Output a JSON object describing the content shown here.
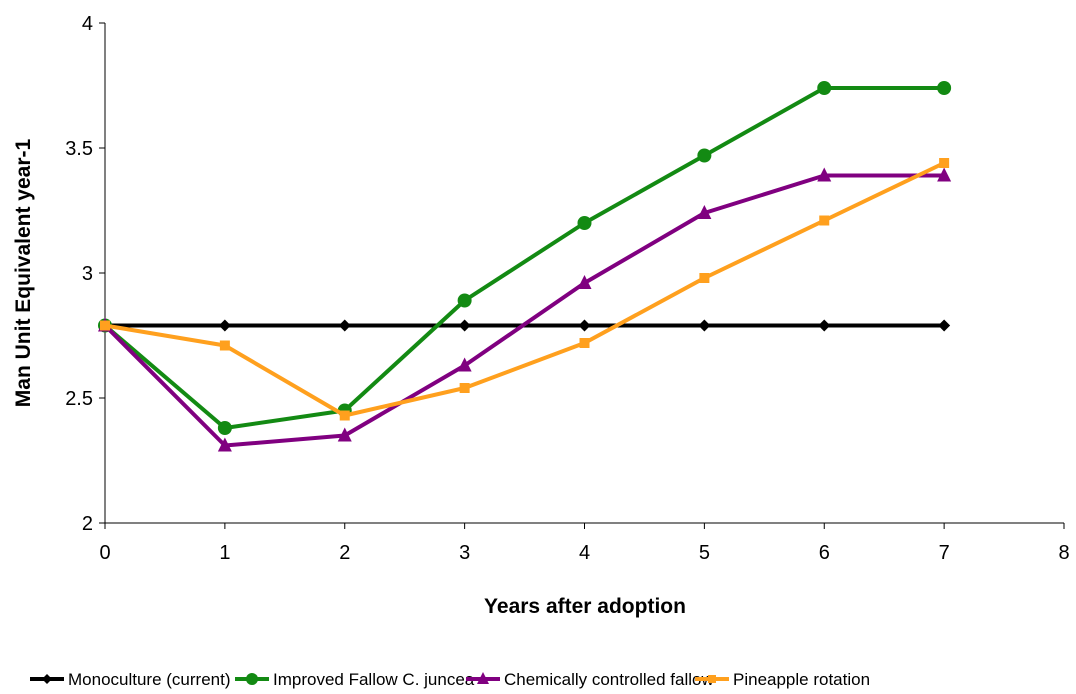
{
  "chart_data": {
    "type": "line",
    "title": "",
    "xlabel": "Years after adoption",
    "ylabel": "Man Unit Equivalent year-1",
    "xlim": [
      0,
      8
    ],
    "ylim": [
      2,
      4
    ],
    "x_ticks": [
      0,
      1,
      2,
      3,
      4,
      5,
      6,
      7,
      8
    ],
    "y_ticks": [
      2,
      2.5,
      3,
      3.5,
      4
    ],
    "grid": false,
    "legend_position": "bottom",
    "x": [
      0,
      1,
      2,
      3,
      4,
      5,
      6,
      7
    ],
    "series": [
      {
        "name": "Monoculture (current)",
        "color": "#000000",
        "marker": "diamond",
        "values": [
          2.79,
          2.79,
          2.79,
          2.79,
          2.79,
          2.79,
          2.79,
          2.79
        ]
      },
      {
        "name": "Improved Fallow C. juncea",
        "color": "#138a13",
        "marker": "circle",
        "values": [
          2.79,
          2.38,
          2.45,
          2.89,
          3.2,
          3.47,
          3.74,
          3.74
        ]
      },
      {
        "name": "Chemically controlled fallow",
        "color": "#800080",
        "marker": "triangle",
        "values": [
          2.79,
          2.31,
          2.35,
          2.63,
          2.96,
          3.24,
          3.39,
          3.39
        ]
      },
      {
        "name": "Pineapple rotation",
        "color": "#ffa01e",
        "marker": "square",
        "values": [
          2.79,
          2.71,
          2.43,
          2.54,
          2.72,
          2.98,
          3.21,
          3.44
        ]
      }
    ]
  }
}
